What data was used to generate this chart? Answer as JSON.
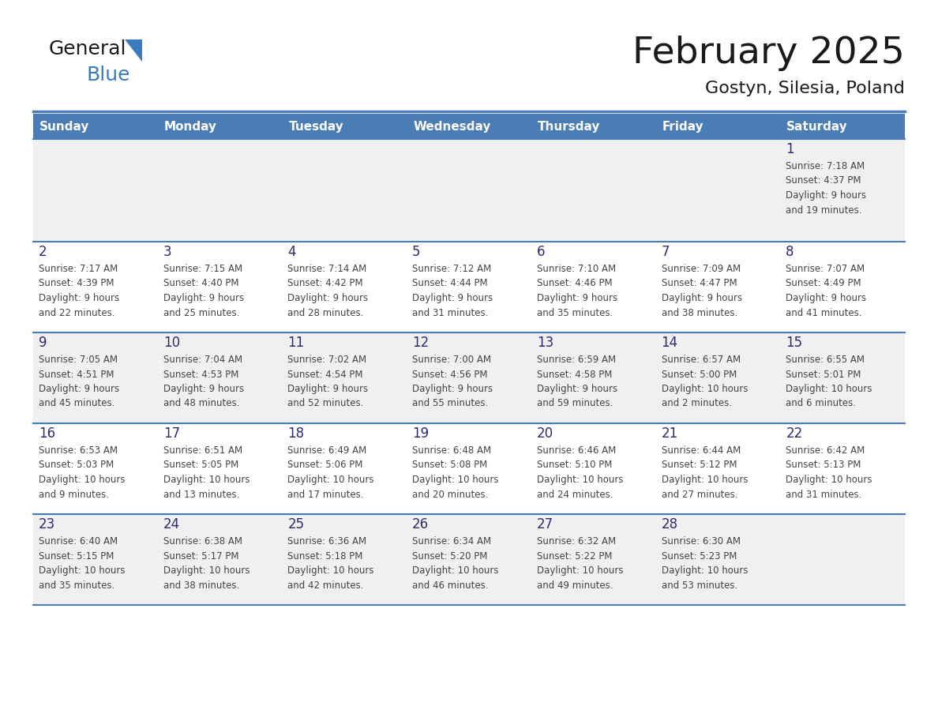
{
  "title": "February 2025",
  "subtitle": "Gostyn, Silesia, Poland",
  "header_bg": "#4a7db5",
  "header_text_color": "#ffffff",
  "header_days": [
    "Sunday",
    "Monday",
    "Tuesday",
    "Wednesday",
    "Thursday",
    "Friday",
    "Saturday"
  ],
  "row_bg_odd": "#f0f0f0",
  "row_bg_even": "#ffffff",
  "cell_text_color": "#444444",
  "day_num_color": "#2c2c6e",
  "separator_color": "#4a7db5",
  "fig_width": 11.88,
  "fig_height": 9.18,
  "dpi": 100,
  "calendar_data": [
    [
      {
        "day": null,
        "info": ""
      },
      {
        "day": null,
        "info": ""
      },
      {
        "day": null,
        "info": ""
      },
      {
        "day": null,
        "info": ""
      },
      {
        "day": null,
        "info": ""
      },
      {
        "day": null,
        "info": ""
      },
      {
        "day": 1,
        "info": "Sunrise: 7:18 AM\nSunset: 4:37 PM\nDaylight: 9 hours\nand 19 minutes."
      }
    ],
    [
      {
        "day": 2,
        "info": "Sunrise: 7:17 AM\nSunset: 4:39 PM\nDaylight: 9 hours\nand 22 minutes."
      },
      {
        "day": 3,
        "info": "Sunrise: 7:15 AM\nSunset: 4:40 PM\nDaylight: 9 hours\nand 25 minutes."
      },
      {
        "day": 4,
        "info": "Sunrise: 7:14 AM\nSunset: 4:42 PM\nDaylight: 9 hours\nand 28 minutes."
      },
      {
        "day": 5,
        "info": "Sunrise: 7:12 AM\nSunset: 4:44 PM\nDaylight: 9 hours\nand 31 minutes."
      },
      {
        "day": 6,
        "info": "Sunrise: 7:10 AM\nSunset: 4:46 PM\nDaylight: 9 hours\nand 35 minutes."
      },
      {
        "day": 7,
        "info": "Sunrise: 7:09 AM\nSunset: 4:47 PM\nDaylight: 9 hours\nand 38 minutes."
      },
      {
        "day": 8,
        "info": "Sunrise: 7:07 AM\nSunset: 4:49 PM\nDaylight: 9 hours\nand 41 minutes."
      }
    ],
    [
      {
        "day": 9,
        "info": "Sunrise: 7:05 AM\nSunset: 4:51 PM\nDaylight: 9 hours\nand 45 minutes."
      },
      {
        "day": 10,
        "info": "Sunrise: 7:04 AM\nSunset: 4:53 PM\nDaylight: 9 hours\nand 48 minutes."
      },
      {
        "day": 11,
        "info": "Sunrise: 7:02 AM\nSunset: 4:54 PM\nDaylight: 9 hours\nand 52 minutes."
      },
      {
        "day": 12,
        "info": "Sunrise: 7:00 AM\nSunset: 4:56 PM\nDaylight: 9 hours\nand 55 minutes."
      },
      {
        "day": 13,
        "info": "Sunrise: 6:59 AM\nSunset: 4:58 PM\nDaylight: 9 hours\nand 59 minutes."
      },
      {
        "day": 14,
        "info": "Sunrise: 6:57 AM\nSunset: 5:00 PM\nDaylight: 10 hours\nand 2 minutes."
      },
      {
        "day": 15,
        "info": "Sunrise: 6:55 AM\nSunset: 5:01 PM\nDaylight: 10 hours\nand 6 minutes."
      }
    ],
    [
      {
        "day": 16,
        "info": "Sunrise: 6:53 AM\nSunset: 5:03 PM\nDaylight: 10 hours\nand 9 minutes."
      },
      {
        "day": 17,
        "info": "Sunrise: 6:51 AM\nSunset: 5:05 PM\nDaylight: 10 hours\nand 13 minutes."
      },
      {
        "day": 18,
        "info": "Sunrise: 6:49 AM\nSunset: 5:06 PM\nDaylight: 10 hours\nand 17 minutes."
      },
      {
        "day": 19,
        "info": "Sunrise: 6:48 AM\nSunset: 5:08 PM\nDaylight: 10 hours\nand 20 minutes."
      },
      {
        "day": 20,
        "info": "Sunrise: 6:46 AM\nSunset: 5:10 PM\nDaylight: 10 hours\nand 24 minutes."
      },
      {
        "day": 21,
        "info": "Sunrise: 6:44 AM\nSunset: 5:12 PM\nDaylight: 10 hours\nand 27 minutes."
      },
      {
        "day": 22,
        "info": "Sunrise: 6:42 AM\nSunset: 5:13 PM\nDaylight: 10 hours\nand 31 minutes."
      }
    ],
    [
      {
        "day": 23,
        "info": "Sunrise: 6:40 AM\nSunset: 5:15 PM\nDaylight: 10 hours\nand 35 minutes."
      },
      {
        "day": 24,
        "info": "Sunrise: 6:38 AM\nSunset: 5:17 PM\nDaylight: 10 hours\nand 38 minutes."
      },
      {
        "day": 25,
        "info": "Sunrise: 6:36 AM\nSunset: 5:18 PM\nDaylight: 10 hours\nand 42 minutes."
      },
      {
        "day": 26,
        "info": "Sunrise: 6:34 AM\nSunset: 5:20 PM\nDaylight: 10 hours\nand 46 minutes."
      },
      {
        "day": 27,
        "info": "Sunrise: 6:32 AM\nSunset: 5:22 PM\nDaylight: 10 hours\nand 49 minutes."
      },
      {
        "day": 28,
        "info": "Sunrise: 6:30 AM\nSunset: 5:23 PM\nDaylight: 10 hours\nand 53 minutes."
      },
      {
        "day": null,
        "info": ""
      }
    ]
  ],
  "logo_color_general": "#1a1a1a",
  "logo_color_blue": "#3a7abf",
  "logo_triangle_color": "#3a7abf"
}
